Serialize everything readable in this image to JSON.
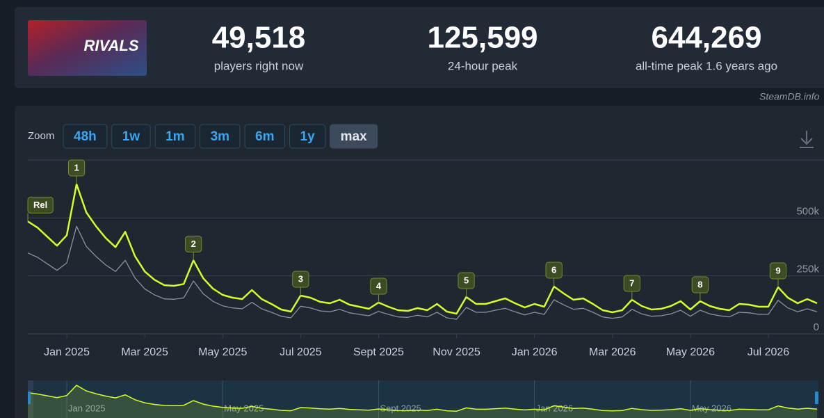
{
  "header": {
    "logo_text": "RIVALS",
    "stats": [
      {
        "value": "49,518",
        "label": "players right now"
      },
      {
        "value": "125,599",
        "label": "24-hour peak"
      },
      {
        "value": "644,269",
        "label": "all-time peak 1.6 years ago"
      }
    ],
    "watermark": "SteamDB.info"
  },
  "zoom": {
    "label": "Zoom",
    "buttons": [
      "48h",
      "1w",
      "1m",
      "3m",
      "6m",
      "1y",
      "max"
    ],
    "active": "max"
  },
  "chart_data": {
    "type": "line",
    "categories": [
      null,
      null,
      null,
      null,
      "Jan 2025",
      null,
      null,
      null,
      null,
      null,
      null,
      null,
      "Mar 2025",
      null,
      null,
      null,
      null,
      null,
      null,
      null,
      "May 2025",
      null,
      null,
      null,
      null,
      null,
      null,
      null,
      "Jul 2025",
      null,
      null,
      null,
      null,
      null,
      null,
      null,
      "Sept 2025",
      null,
      null,
      null,
      null,
      null,
      null,
      null,
      "Nov 2025",
      null,
      null,
      null,
      null,
      null,
      null,
      null,
      "Jan 2026",
      null,
      null,
      null,
      null,
      null,
      null,
      null,
      "Mar 2026",
      null,
      null,
      null,
      null,
      null,
      null,
      null,
      "May 2026",
      null,
      null,
      null,
      null,
      null,
      null,
      null,
      "Jul 2026",
      null,
      null,
      null,
      null,
      null
    ],
    "series": [
      {
        "color": "#d4ff2a",
        "values": [
          485000,
          458000,
          419000,
          380000,
          425000,
          645000,
          524000,
          464000,
          413000,
          374000,
          440000,
          335000,
          269000,
          233000,
          210000,
          207000,
          215000,
          317000,
          240000,
          195000,
          168000,
          156000,
          150000,
          189000,
          150000,
          129000,
          105000,
          96000,
          165000,
          156000,
          138000,
          132000,
          147000,
          126000,
          117000,
          108000,
          135000,
          117000,
          102000,
          99000,
          111000,
          102000,
          129000,
          96000,
          87000,
          159000,
          129000,
          129000,
          141000,
          153000,
          132000,
          114000,
          129000,
          117000,
          204000,
          174000,
          147000,
          153000,
          129000,
          102000,
          93000,
          102000,
          147000,
          120000,
          105000,
          108000,
          120000,
          141000,
          105000,
          141000,
          120000,
          108000,
          102000,
          129000,
          126000,
          117000,
          117000,
          201000,
          156000,
          132000,
          150000,
          132000
        ]
      },
      {
        "color": "#8a949e",
        "values": [
          349000,
          330000,
          302000,
          274000,
          306000,
          464000,
          377000,
          334000,
          297000,
          269000,
          317000,
          241000,
          194000,
          168000,
          151000,
          149000,
          155000,
          228000,
          173000,
          140000,
          121000,
          112000,
          108000,
          136000,
          108000,
          93000,
          76000,
          69000,
          119000,
          112000,
          99000,
          95000,
          106000,
          91000,
          84000,
          78000,
          97000,
          84000,
          73000,
          71000,
          80000,
          73000,
          93000,
          69000,
          63000,
          114000,
          93000,
          93000,
          102000,
          110000,
          95000,
          82000,
          93000,
          84000,
          147000,
          125000,
          106000,
          110000,
          93000,
          73000,
          67000,
          73000,
          106000,
          86000,
          76000,
          78000,
          86000,
          102000,
          76000,
          102000,
          86000,
          78000,
          73000,
          93000,
          91000,
          84000,
          84000,
          145000,
          112000,
          95000,
          108000,
          95000
        ]
      }
    ],
    "ylim": [
      0,
      750000
    ],
    "yticks": [
      0,
      {
        "value": 250000,
        "label": "250k"
      },
      {
        "value": 500000,
        "label": "500k"
      }
    ],
    "grid": true,
    "annotations": [
      {
        "text": "Rel",
        "index": 0
      },
      {
        "text": "1",
        "index": 5
      },
      {
        "text": "2",
        "index": 17
      },
      {
        "text": "3",
        "index": 28
      },
      {
        "text": "4",
        "index": 36
      },
      {
        "text": "5",
        "index": 45
      },
      {
        "text": "6",
        "index": 54
      },
      {
        "text": "7",
        "index": 62
      },
      {
        "text": "8",
        "index": 69
      },
      {
        "text": "9",
        "index": 77
      }
    ]
  }
}
